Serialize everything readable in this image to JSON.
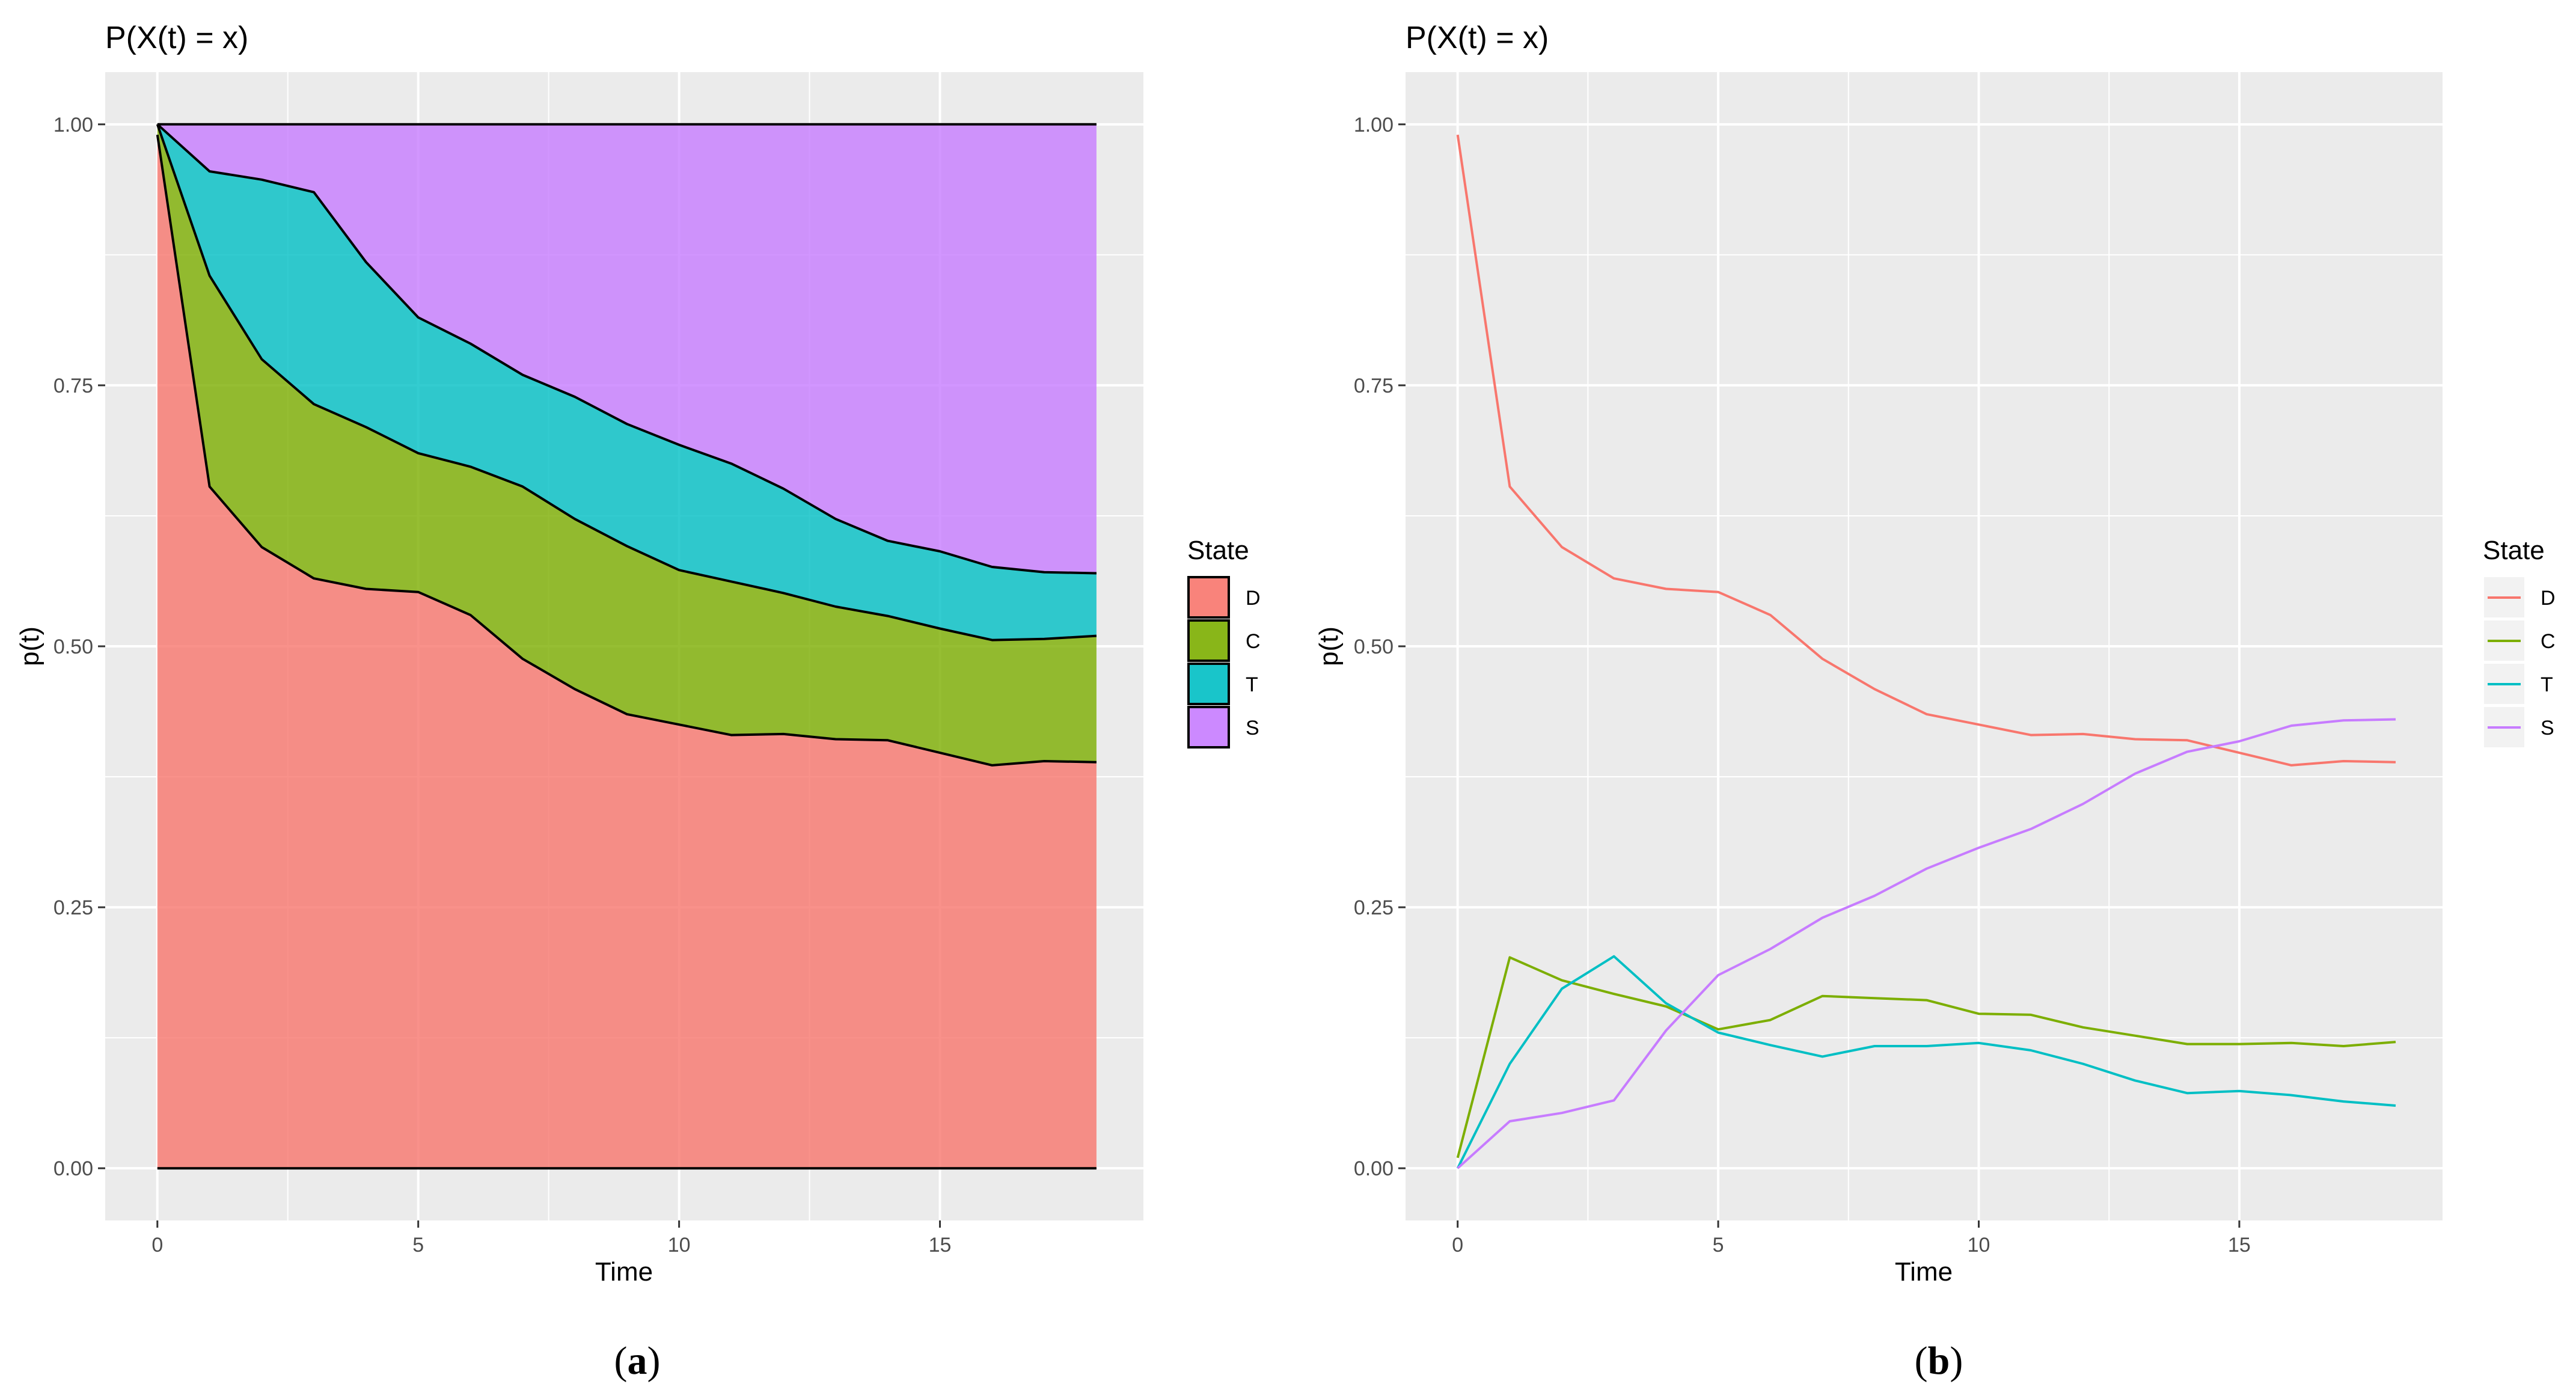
{
  "states": [
    "D",
    "C",
    "T",
    "S"
  ],
  "colors": {
    "D": "#F8766D",
    "C": "#7CAE00",
    "T": "#00BFC4",
    "S": "#C77CFF",
    "panel": "#EBEBEB",
    "grid": "#FFFFFF"
  },
  "chart_data": [
    {
      "type": "area",
      "panel_caption": "a",
      "title": "P(X(t) = x)",
      "xlabel": "Time",
      "ylabel": "p(t)",
      "xlim": [
        -1,
        18.9
      ],
      "ylim": [
        -0.05,
        1.05
      ],
      "x_ticks": [
        0,
        5,
        10,
        15
      ],
      "x_tick_labels": [
        "0",
        "5",
        "10",
        "15"
      ],
      "y_ticks": [
        0,
        0.25,
        0.5,
        0.75,
        1
      ],
      "y_tick_labels": [
        "0.00",
        "0.25",
        "0.50",
        "0.75",
        "1.00"
      ],
      "grid": true,
      "stacked": true,
      "legend": {
        "title": "State",
        "position": "right",
        "entries": [
          "D",
          "C",
          "T",
          "S"
        ]
      },
      "x": [
        0,
        1,
        2,
        3,
        4,
        5,
        6,
        7,
        8,
        9,
        10,
        11,
        12,
        13,
        14,
        15,
        16,
        17,
        18
      ],
      "series": [
        {
          "name": "D",
          "values": [
            0.99,
            0.653,
            0.595,
            0.565,
            0.555,
            0.552,
            0.53,
            0.488,
            0.459,
            0.435,
            0.425,
            0.415,
            0.416,
            0.411,
            0.41,
            0.398,
            0.386,
            0.39,
            0.389
          ]
        },
        {
          "name": "C",
          "values": [
            0.01,
            0.202,
            0.18,
            0.167,
            0.155,
            0.133,
            0.142,
            0.165,
            0.163,
            0.161,
            0.148,
            0.147,
            0.135,
            0.127,
            0.119,
            0.119,
            0.12,
            0.117,
            0.121
          ]
        },
        {
          "name": "T",
          "values": [
            0,
            0.1,
            0.172,
            0.203,
            0.158,
            0.13,
            0.118,
            0.107,
            0.117,
            0.117,
            0.12,
            0.113,
            0.1,
            0.084,
            0.072,
            0.074,
            0.07,
            0.064,
            0.06
          ]
        },
        {
          "name": "S",
          "values": [
            0,
            0.045,
            0.053,
            0.065,
            0.132,
            0.185,
            0.21,
            0.24,
            0.261,
            0.287,
            0.307,
            0.325,
            0.349,
            0.378,
            0.399,
            0.409,
            0.424,
            0.429,
            0.43
          ]
        }
      ]
    },
    {
      "type": "line",
      "panel_caption": "b",
      "title": "P(X(t) = x)",
      "xlabel": "Time",
      "ylabel": "p(t)",
      "xlim": [
        -1,
        18.9
      ],
      "ylim": [
        -0.05,
        1.05
      ],
      "x_ticks": [
        0,
        5,
        10,
        15
      ],
      "x_tick_labels": [
        "0",
        "5",
        "10",
        "15"
      ],
      "y_ticks": [
        0,
        0.25,
        0.5,
        0.75,
        1
      ],
      "y_tick_labels": [
        "0.00",
        "0.25",
        "0.50",
        "0.75",
        "1.00"
      ],
      "grid": true,
      "legend": {
        "title": "State",
        "position": "right",
        "entries": [
          "D",
          "C",
          "T",
          "S"
        ]
      },
      "x": [
        0,
        1,
        2,
        3,
        4,
        5,
        6,
        7,
        8,
        9,
        10,
        11,
        12,
        13,
        14,
        15,
        16,
        17,
        18
      ],
      "series": [
        {
          "name": "D",
          "values": [
            0.99,
            0.653,
            0.595,
            0.565,
            0.555,
            0.552,
            0.53,
            0.488,
            0.459,
            0.435,
            0.425,
            0.415,
            0.416,
            0.411,
            0.41,
            0.398,
            0.386,
            0.39,
            0.389
          ]
        },
        {
          "name": "C",
          "values": [
            0.01,
            0.202,
            0.18,
            0.167,
            0.155,
            0.133,
            0.142,
            0.165,
            0.163,
            0.161,
            0.148,
            0.147,
            0.135,
            0.127,
            0.119,
            0.119,
            0.12,
            0.117,
            0.121
          ]
        },
        {
          "name": "T",
          "values": [
            0,
            0.1,
            0.172,
            0.203,
            0.158,
            0.13,
            0.118,
            0.107,
            0.117,
            0.117,
            0.12,
            0.113,
            0.1,
            0.084,
            0.072,
            0.074,
            0.07,
            0.064,
            0.06
          ]
        },
        {
          "name": "S",
          "values": [
            0,
            0.045,
            0.053,
            0.065,
            0.132,
            0.185,
            0.21,
            0.24,
            0.261,
            0.287,
            0.307,
            0.325,
            0.349,
            0.378,
            0.399,
            0.409,
            0.424,
            0.429,
            0.43
          ]
        }
      ]
    }
  ]
}
